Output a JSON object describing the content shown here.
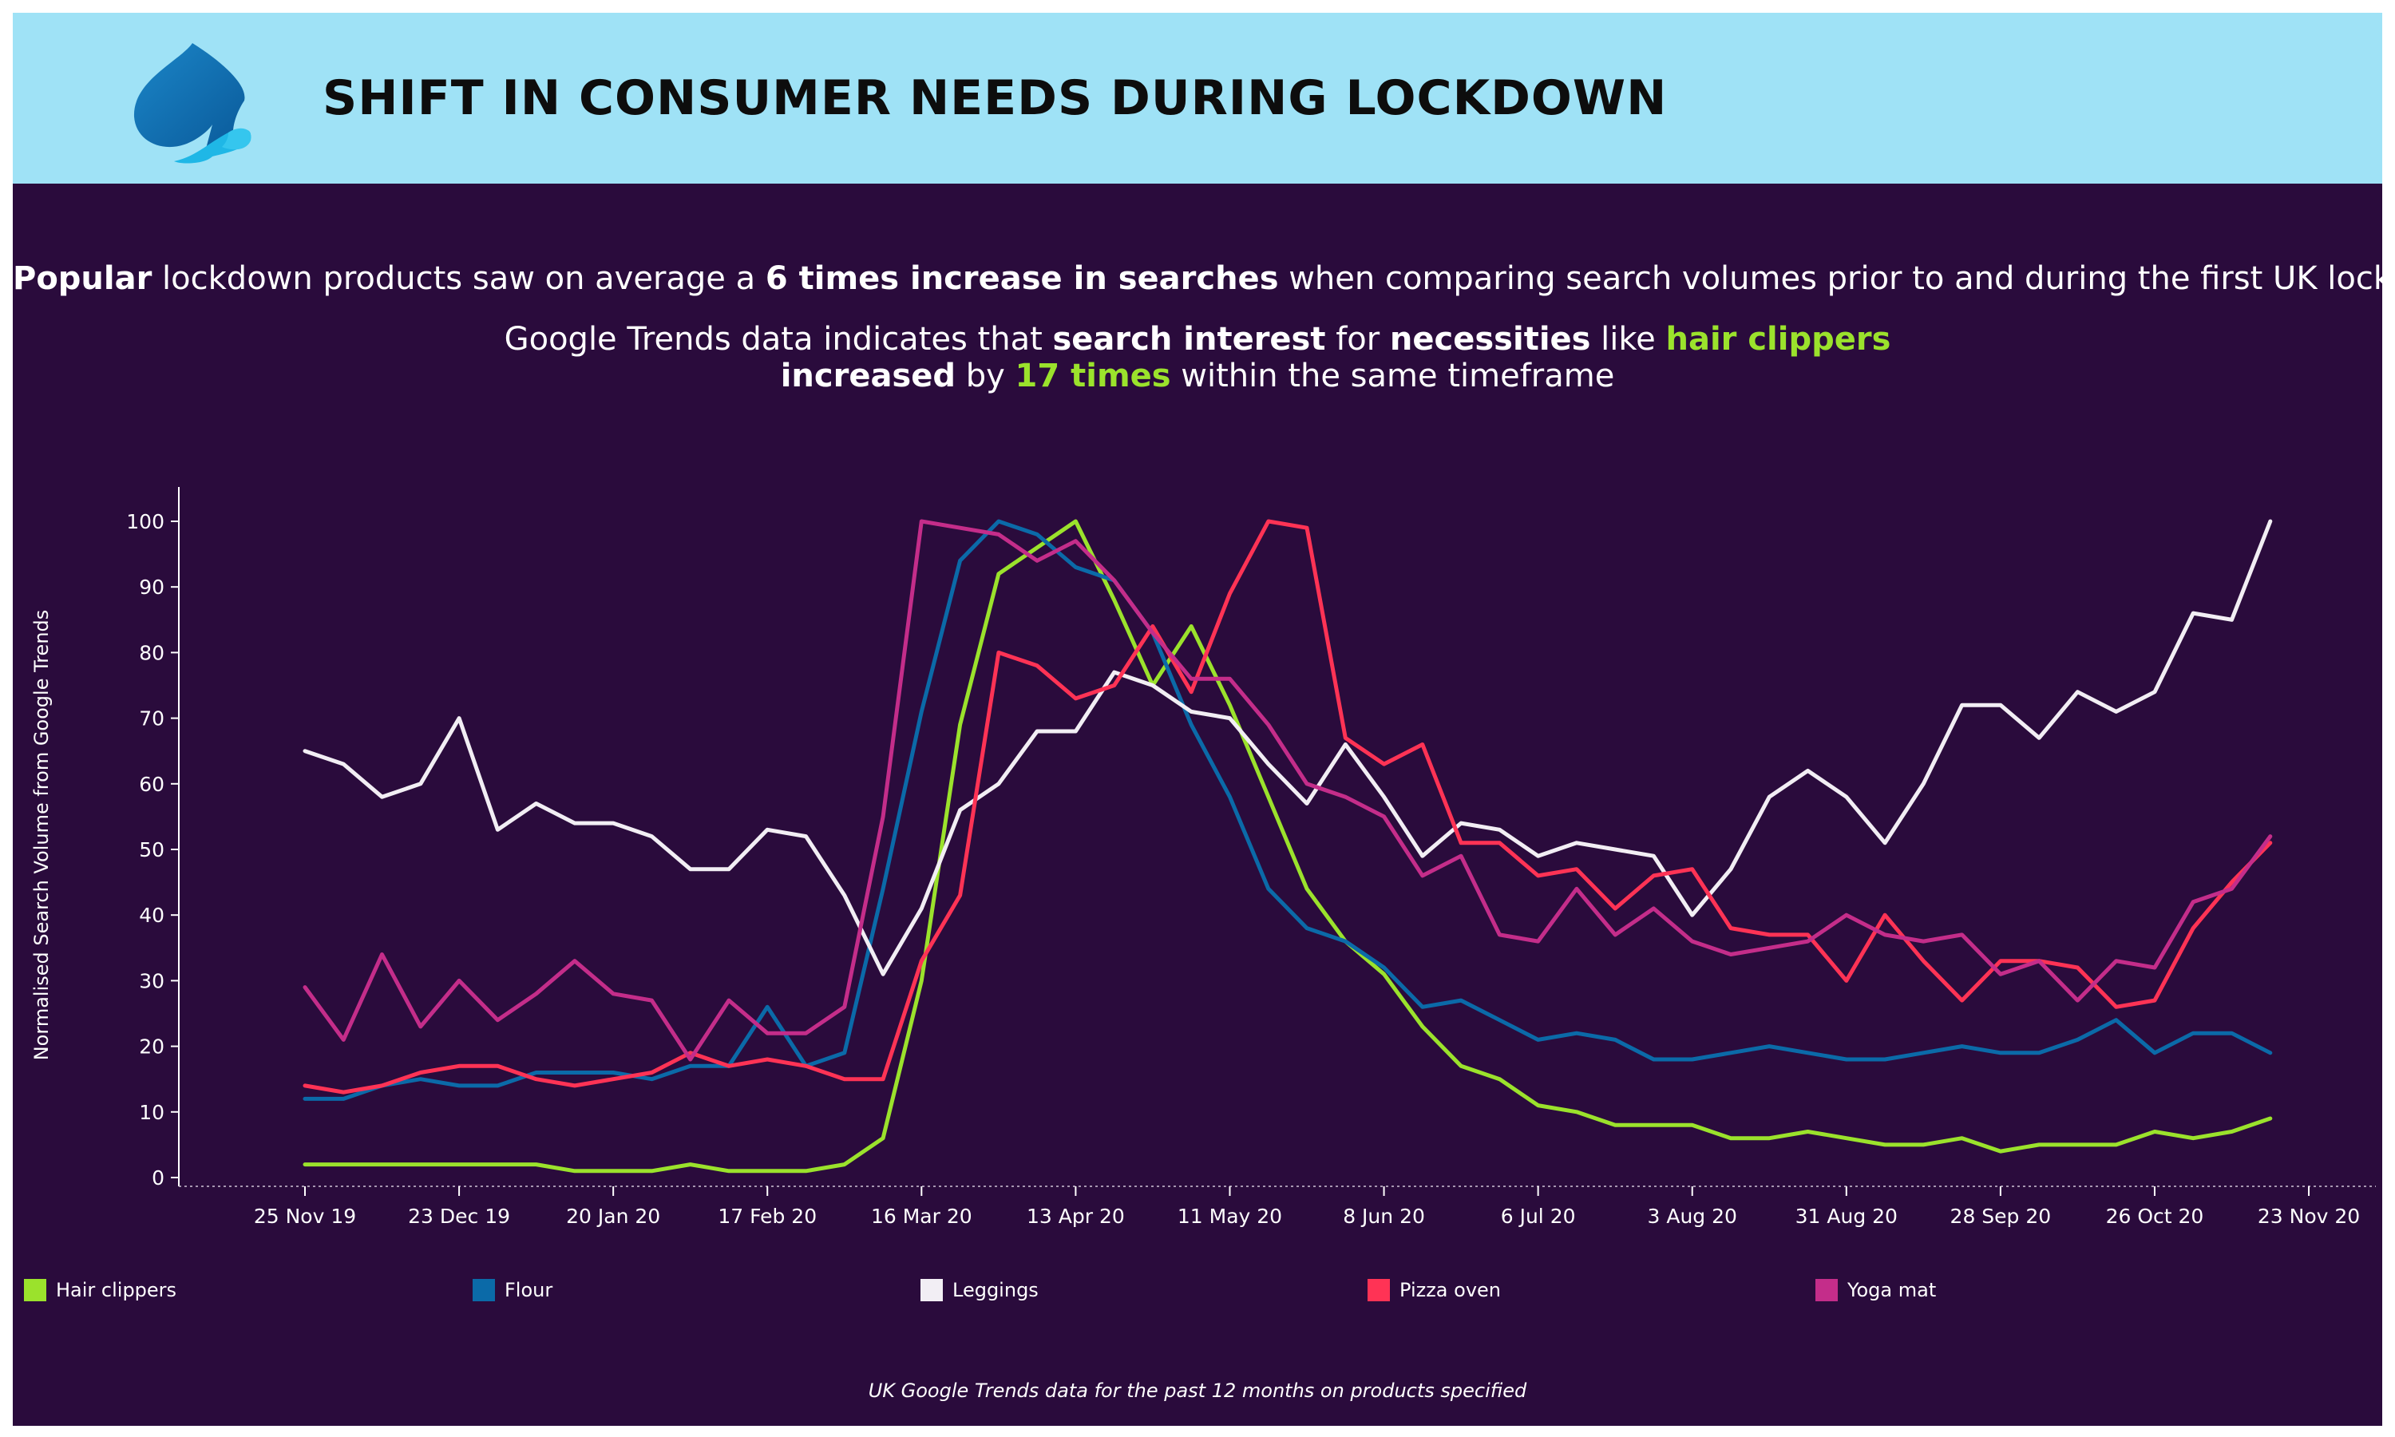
{
  "header": {
    "title": "SHIFT IN CONSUMER NEEDS DURING LOCKDOWN"
  },
  "subtitle": {
    "line1": {
      "b1": "Popular",
      "t1": " lockdown products saw on average a ",
      "b2": "6 times increase in searches",
      "t2": " when comparing search volumes prior to and during the first UK lockdown"
    },
    "line2": {
      "t1": "Google Trends data indicates that ",
      "b1": "search interest",
      "t2": " for ",
      "b2": "necessities",
      "t3": " like ",
      "g1": "hair clippers"
    },
    "line3": {
      "b1": "increased",
      "t1": " by ",
      "g1": "17 times",
      "t2": " within the same timeframe"
    }
  },
  "footnote": "UK Google Trends data for the past 12 months on products specified",
  "colors": {
    "header_bg": "#9fe2f6",
    "chart_bg": "#2a0b3c",
    "accent_green": "#9be22c"
  },
  "chart_data": {
    "type": "line",
    "ylabel": "Normalised Search Volume from Google Trends",
    "xlabel": "",
    "ylim": [
      0,
      100
    ],
    "y_ticks": [
      0,
      10,
      20,
      30,
      40,
      50,
      60,
      70,
      80,
      90,
      100
    ],
    "x_tick_labels": [
      "25 Nov 19",
      "23 Dec 19",
      "20 Jan 20",
      "17 Feb 20",
      "16 Mar 20",
      "13 Apr 20",
      "11 May 20",
      "8 Jun 20",
      "6 Jul 20",
      "3 Aug 20",
      "31 Aug 20",
      "28 Sep 20",
      "26 Oct 20",
      "23 Nov 20"
    ],
    "x_start": "25 Nov 19",
    "x_interval": "weekly",
    "legend_position": "bottom",
    "series": [
      {
        "name": "Hair clippers",
        "color": "#9be22c",
        "values": [
          2,
          2,
          2,
          2,
          2,
          2,
          2,
          1,
          1,
          1,
          2,
          1,
          1,
          1,
          2,
          6,
          30,
          69,
          92,
          96,
          100,
          88,
          75,
          84,
          72,
          58,
          44,
          36,
          31,
          23,
          17,
          15,
          11,
          10,
          8,
          8,
          8,
          6,
          6,
          7,
          6,
          5,
          5,
          6,
          4,
          5,
          5,
          5,
          7,
          6,
          7,
          9
        ]
      },
      {
        "name": "Flour",
        "color": "#0b6aa8",
        "values": [
          12,
          12,
          14,
          15,
          14,
          14,
          16,
          16,
          16,
          15,
          17,
          17,
          26,
          17,
          19,
          44,
          71,
          94,
          100,
          98,
          93,
          91,
          83,
          69,
          58,
          44,
          38,
          36,
          32,
          26,
          27,
          24,
          21,
          22,
          21,
          18,
          18,
          19,
          20,
          19,
          18,
          18,
          19,
          20,
          19,
          19,
          21,
          24,
          19,
          22,
          22,
          19
        ]
      },
      {
        "name": "Leggings",
        "color": "#f2eef4",
        "values": [
          65,
          63,
          58,
          60,
          70,
          53,
          57,
          54,
          54,
          52,
          47,
          47,
          53,
          52,
          43,
          31,
          41,
          56,
          60,
          68,
          68,
          77,
          75,
          71,
          70,
          63,
          57,
          66,
          58,
          49,
          54,
          53,
          49,
          51,
          50,
          49,
          40,
          47,
          58,
          62,
          58,
          51,
          60,
          72,
          72,
          67,
          74,
          71,
          74,
          86,
          85,
          100
        ]
      },
      {
        "name": "Pizza oven",
        "color": "#ff3355",
        "values": [
          14,
          13,
          14,
          16,
          17,
          17,
          15,
          14,
          15,
          16,
          19,
          17,
          18,
          17,
          15,
          15,
          33,
          43,
          80,
          78,
          73,
          75,
          84,
          74,
          89,
          100,
          99,
          67,
          63,
          66,
          51,
          51,
          46,
          47,
          41,
          46,
          47,
          38,
          37,
          37,
          30,
          40,
          33,
          27,
          33,
          33,
          32,
          26,
          27,
          38,
          45,
          51
        ]
      },
      {
        "name": "Yoga mat",
        "color": "#c42d8a",
        "values": [
          29,
          21,
          34,
          23,
          30,
          24,
          28,
          33,
          28,
          27,
          18,
          27,
          22,
          22,
          26,
          55,
          100,
          99,
          98,
          94,
          97,
          91,
          83,
          76,
          76,
          69,
          60,
          58,
          55,
          46,
          49,
          37,
          36,
          44,
          37,
          41,
          36,
          34,
          35,
          36,
          40,
          37,
          36,
          37,
          31,
          33,
          27,
          33,
          32,
          42,
          44,
          52
        ]
      }
    ]
  }
}
